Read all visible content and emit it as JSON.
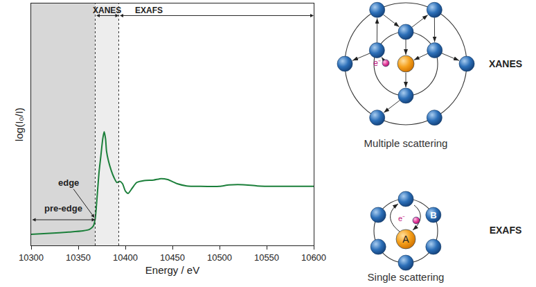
{
  "chart_data": {
    "type": "line",
    "x_label": "Energy / eV",
    "y_label": "log(I₀/I)",
    "x": [
      10300,
      10320,
      10340,
      10355,
      10362,
      10366,
      10368,
      10370,
      10372,
      10374,
      10376,
      10377.5,
      10379,
      10380,
      10382,
      10385,
      10388,
      10391,
      10394,
      10397,
      10400,
      10403,
      10407,
      10412,
      10420,
      10430,
      10438,
      10445,
      10455,
      10465,
      10480,
      10500,
      10510,
      10525,
      10540,
      10560,
      10600
    ],
    "values": [
      4.6,
      5.0,
      5.5,
      6.0,
      6.6,
      8.0,
      11,
      20,
      30,
      37,
      44,
      47,
      44,
      39,
      35,
      31,
      28,
      26,
      26.5,
      25.5,
      22.5,
      21.5,
      23.5,
      26,
      26.8,
      27,
      27.6,
      27.2,
      25.5,
      24.6,
      24.4,
      24.4,
      25,
      25.1,
      24.6,
      24.4,
      24.4
    ],
    "color": "#1b7f3a",
    "xlim": [
      10300,
      10600
    ],
    "xticks": [
      10300,
      10350,
      10400,
      10450,
      10500,
      10550,
      10600
    ],
    "ylim": [
      0,
      100
    ],
    "tick_labels": "x",
    "pre_edge": {
      "text": "pre-edge",
      "x": [
        10300,
        10368
      ],
      "color": "#d7d7d7"
    },
    "regions": [
      {
        "text": "XANES",
        "x": [
          10368,
          10393
        ],
        "color": "#ededed"
      },
      {
        "text": "EXAFS",
        "x": [
          10393,
          10600
        ]
      }
    ],
    "edge": {
      "text": "edge",
      "x": 10368,
      "y": 11
    }
  },
  "diagrams": [
    {
      "title": "Multiple scattering",
      "tag": "XANES",
      "electron": "e⁻"
    },
    {
      "title": "Single scattering",
      "tag": "EXAFS",
      "electron": "e⁻",
      "absorber": "A",
      "scatterer": "B"
    }
  ]
}
